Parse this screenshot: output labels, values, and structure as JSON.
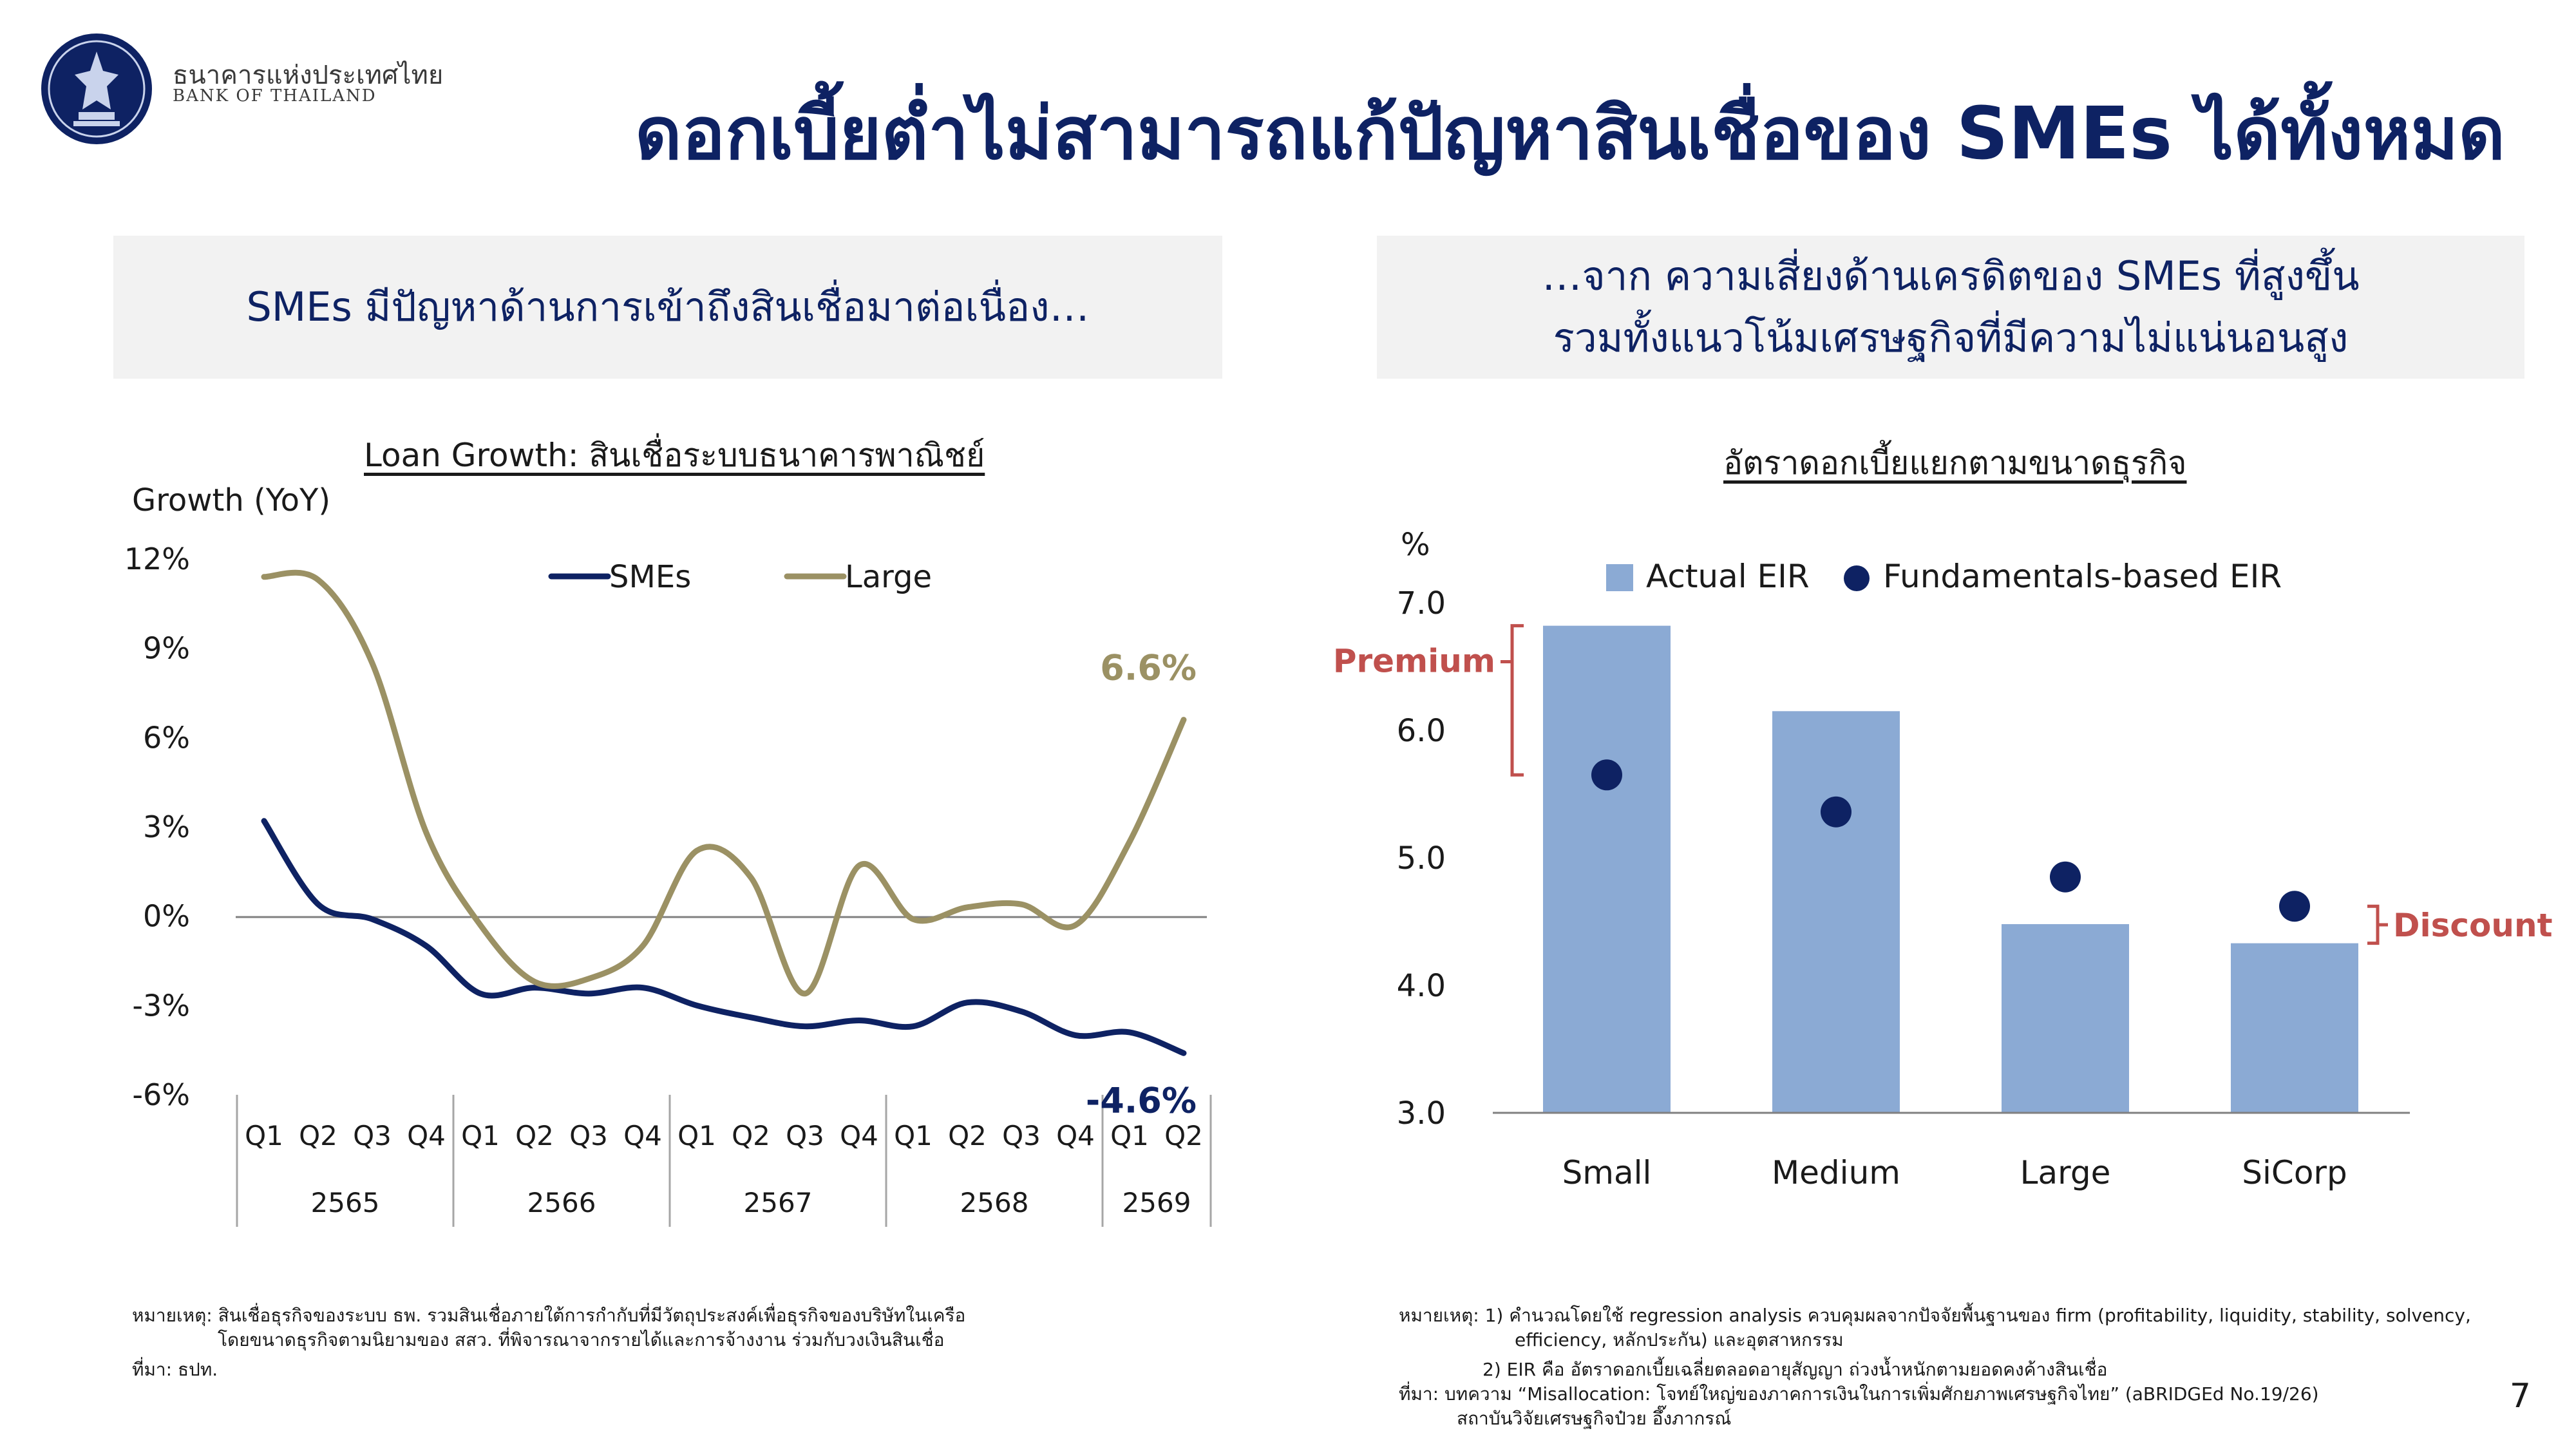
{
  "header": {
    "org_th": "ธนาคารแห่งประเทศไทย",
    "org_en": "BANK OF THAILAND",
    "title": "ดอกเบี้ยต่ำไม่สามารถแก้ปัญหาสินเชื่อของ SMEs ได้ทั้งหมด"
  },
  "left_banner": {
    "text": "SMEs มีปัญหาด้านการเข้าถึงสินเชื่อมาต่อเนื่อง…"
  },
  "right_banner": {
    "line1": "…จาก ความเสี่ยงด้านเครดิตของ SMEs ที่สูงขึ้น",
    "line2": "รวมทั้งแนวโน้มเศรษฐกิจที่มีความไม่แน่นอนสูง"
  },
  "colors": {
    "navy": "#0e2263",
    "olive": "#9b9164",
    "bar": "#8baad4",
    "red": "#c0504d"
  },
  "chart_data": [
    {
      "type": "line",
      "title": "Loan Growth: สินเชื่อระบบธนาคารพาณิชย์",
      "ylabel": "Growth (YoY)",
      "ylim": [
        -6,
        12
      ],
      "yticks": [
        12,
        9,
        6,
        3,
        0,
        -3,
        -6
      ],
      "ytick_labels": [
        "12%",
        "9%",
        "6%",
        "3%",
        "0%",
        "-3%",
        "-6%"
      ],
      "grid": false,
      "legend": "top",
      "quarter_labels": [
        "Q1",
        "Q2",
        "Q3",
        "Q4",
        "Q1",
        "Q2",
        "Q3",
        "Q4",
        "Q1",
        "Q2",
        "Q3",
        "Q4",
        "Q1",
        "Q2",
        "Q3",
        "Q4",
        "Q1",
        "Q2"
      ],
      "years": [
        {
          "label": "2565",
          "quarters": 4
        },
        {
          "label": "2566",
          "quarters": 4
        },
        {
          "label": "2567",
          "quarters": 4
        },
        {
          "label": "2568",
          "quarters": 4
        },
        {
          "label": "2569",
          "quarters": 2
        }
      ],
      "series": [
        {
          "name": "SMEs",
          "color": "#0e2263",
          "values": [
            3.2,
            0.4,
            -0.1,
            -1.0,
            -2.6,
            -2.4,
            -2.6,
            -2.4,
            -3.0,
            -3.4,
            -3.7,
            -3.5,
            -3.7,
            -2.9,
            -3.2,
            -4.0,
            -3.9,
            -4.6
          ],
          "end_label": "-4.6%"
        },
        {
          "name": "Large",
          "color": "#9b9164",
          "values": [
            11.4,
            11.3,
            8.5,
            2.8,
            -0.3,
            -2.2,
            -2.1,
            -1.0,
            2.2,
            1.3,
            -2.6,
            1.7,
            -0.1,
            0.3,
            0.4,
            -0.3,
            2.5,
            6.6
          ],
          "end_label": "6.6%"
        }
      ]
    },
    {
      "type": "bar",
      "title": "อัตราดอกเบี้ยแยกตามขนาดธุรกิจ",
      "ylabel": "%",
      "ylim": [
        3.0,
        7.0
      ],
      "yticks": [
        "7.0",
        "6.0",
        "5.0",
        "4.0",
        "3.0"
      ],
      "categories": [
        "Small",
        "Medium",
        "Large",
        "SiCorp"
      ],
      "legend": "top",
      "series": [
        {
          "name": "Actual EIR",
          "color": "#8baad4",
          "values": [
            6.82,
            6.15,
            4.48,
            4.33
          ]
        },
        {
          "name": "Fundamentals-based EIR",
          "color": "#0e2263",
          "values": [
            5.65,
            5.36,
            4.85,
            4.62
          ]
        }
      ],
      "annotations": [
        {
          "label": "Premium",
          "category": "Small"
        },
        {
          "label": "Discount",
          "category": "SiCorp"
        }
      ]
    }
  ],
  "notes_left": {
    "line1": "หมายเหตุ: สินเชื่อธุรกิจของระบบ ธพ. รวมสินเชื่อภายใต้การกำกับที่มีวัตถุประสงค์เพื่อธุรกิจของบริษัทในเครือ",
    "line2": "โดยขนาดธุรกิจตามนิยามของ สสว. ที่พิจารณาจากรายได้และการจ้างงาน ร่วมกับวงเงินสินเชื่อ",
    "line3": "ที่มา: ธปท."
  },
  "notes_right": {
    "line1": "หมายเหตุ: 1) คำนวณโดยใช้ regression analysis ควบคุมผลจากปัจจัยพื้นฐานของ firm (profitability, liquidity, stability, solvency,",
    "line2": "efficiency, หลักประกัน) และอุตสาหกรรม",
    "line3": "2) EIR คือ อัตราดอกเบี้ยเฉลี่ยตลอดอายุสัญญา ถ่วงน้ำหนักตามยอดคงค้างสินเชื่อ",
    "line4": "ที่มา:    บทความ “Misallocation: โจทย์ใหญ่ของภาคการเงินในการเพิ่มศักยภาพเศรษฐกิจไทย” (aBRIDGEd  No.19/26)",
    "line5": "สถาบันวิจัยเศรษฐกิจป๋วย อึ๊งภากรณ์"
  },
  "page_number": "7"
}
